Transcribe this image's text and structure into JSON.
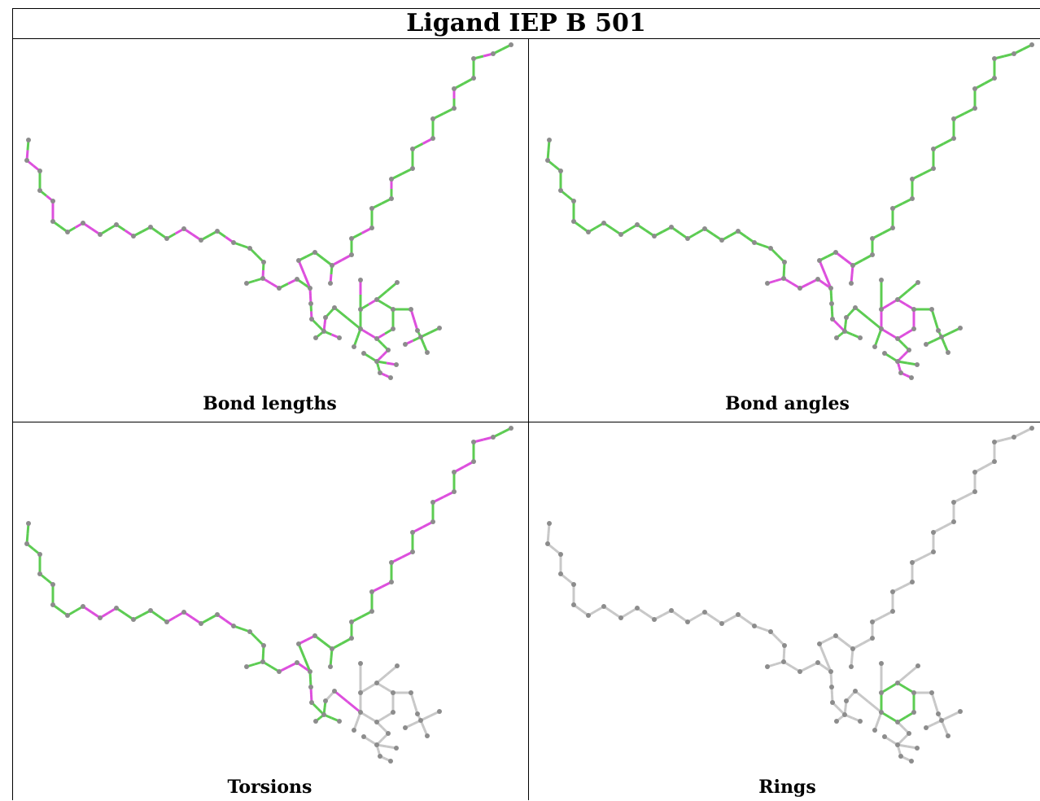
{
  "title": "Ligand IEP B 501",
  "panels": [
    {
      "caption": "Bond lengths",
      "scheme": "lengths"
    },
    {
      "caption": "Bond angles",
      "scheme": "angles"
    },
    {
      "caption": "Torsions",
      "scheme": "torsions"
    },
    {
      "caption": "Rings",
      "scheme": "rings"
    }
  ],
  "colors": {
    "ok_bond": "#5ccc52",
    "outlier_bond": "#dd4fdd",
    "neutral_bond": "#c8c8c8",
    "atom": "#8c8c8c"
  }
}
